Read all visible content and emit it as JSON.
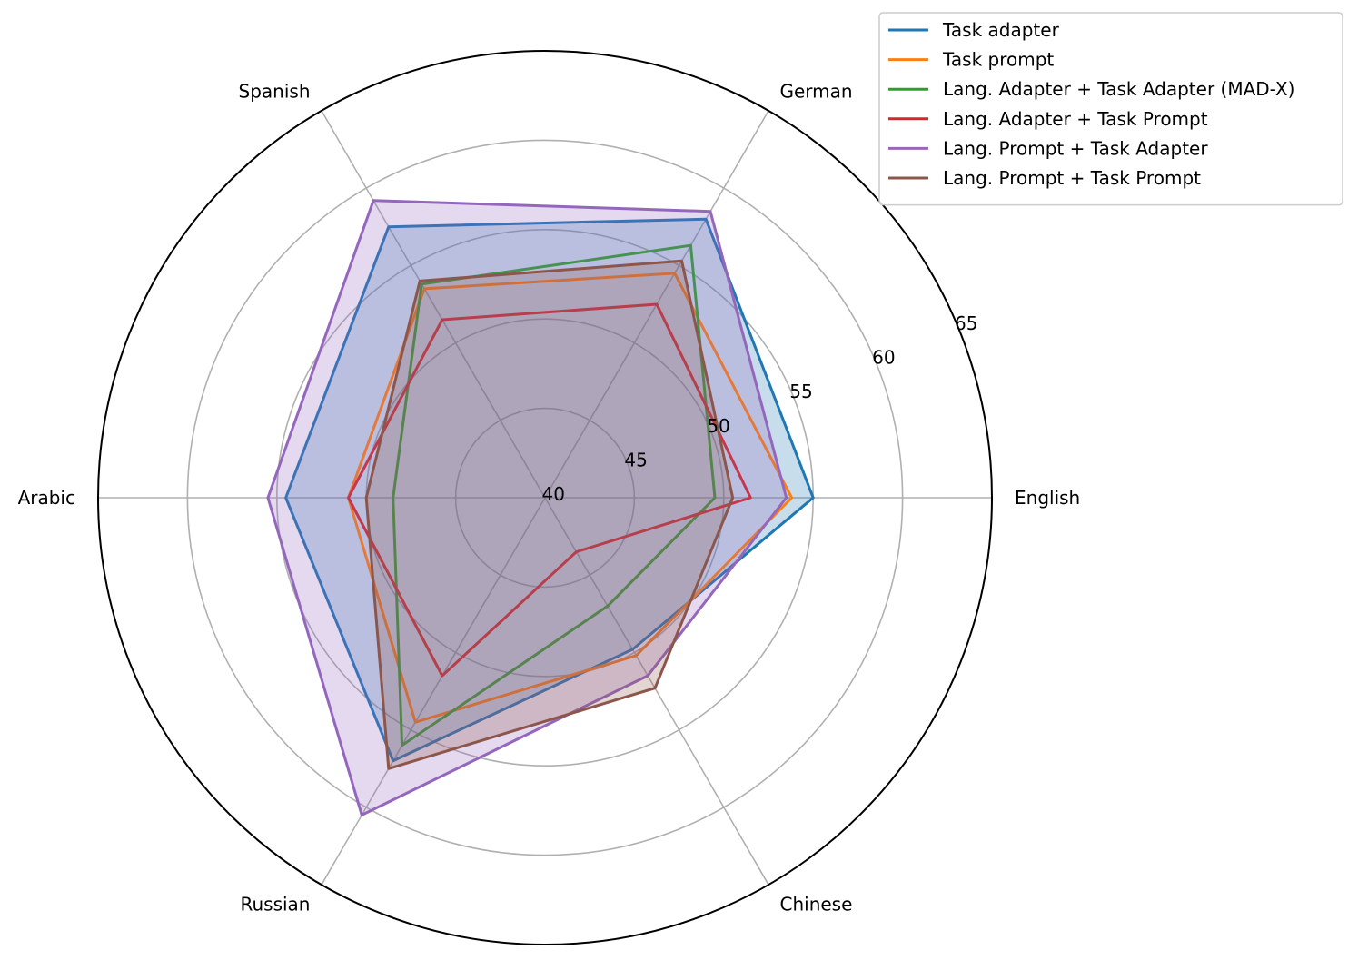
{
  "chart_data": {
    "type": "radar",
    "title": "",
    "categories": [
      "English",
      "German",
      "Spanish",
      "Arabic",
      "Russian",
      "Chinese"
    ],
    "rlim": [
      40,
      65
    ],
    "rticks": [
      40,
      45,
      50,
      55,
      60,
      65
    ],
    "grid": true,
    "legend_position": "top-right",
    "series": [
      {
        "name": "Task adapter",
        "color": "#1f77b4",
        "fill": true,
        "values": [
          55.0,
          58.0,
          57.5,
          54.5,
          57.0,
          49.8
        ]
      },
      {
        "name": "Task prompt",
        "color": "#ff7f0e",
        "fill": false,
        "values": [
          53.8,
          54.5,
          53.5,
          51.0,
          54.5,
          50.2
        ]
      },
      {
        "name": "Lang. Adapter + Task Adapter (MAD-X)",
        "color": "#2ca02c",
        "fill": false,
        "values": [
          49.5,
          56.3,
          53.8,
          48.5,
          56.0,
          47.0
        ]
      },
      {
        "name": "Lang. Adapter + Task Prompt",
        "color": "#d62728",
        "fill": false,
        "values": [
          51.5,
          52.5,
          51.5,
          51.0,
          51.5,
          43.5
        ]
      },
      {
        "name": "Lang. Prompt + Task Adapter",
        "color": "#9467bd",
        "fill": true,
        "values": [
          53.5,
          58.5,
          59.2,
          55.5,
          60.5,
          51.5
        ]
      },
      {
        "name": "Lang. Prompt + Task Prompt",
        "color": "#8c564b",
        "fill": true,
        "values": [
          50.5,
          55.3,
          54.0,
          50.0,
          57.5,
          52.3
        ]
      }
    ]
  }
}
